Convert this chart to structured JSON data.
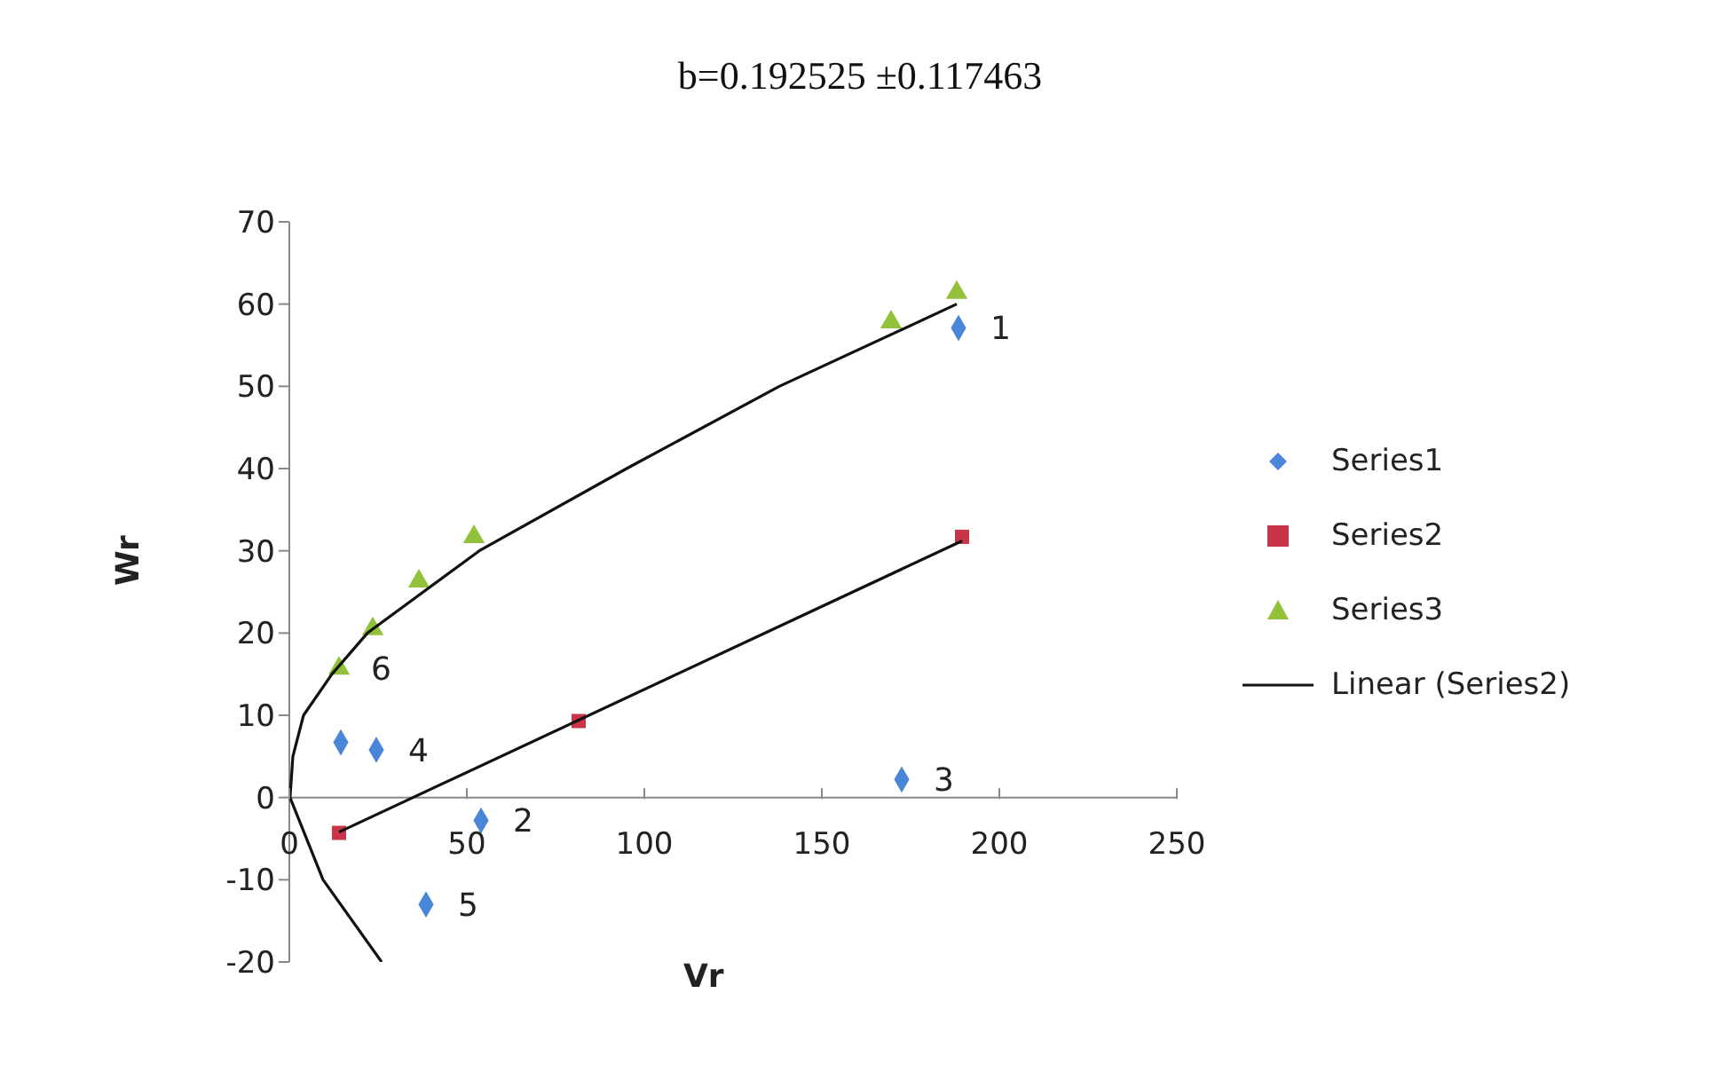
{
  "chart_data": {
    "type": "scatter",
    "title": "b=0.192525 ±0.117463",
    "xlabel": "Vr",
    "ylabel": "Wr",
    "xlim": [
      0,
      250
    ],
    "xticks": [
      0,
      50,
      100,
      150,
      200,
      250
    ],
    "ylim": [
      -20,
      70
    ],
    "yticks": [
      -20,
      -10,
      0,
      10,
      20,
      30,
      40,
      50,
      60,
      70
    ],
    "legend": "right",
    "series": [
      {
        "name": "Series1",
        "color": "#4a86d8",
        "marker": "diamond",
        "x": [
          188.5,
          54,
          172.5,
          24.5,
          38.5,
          14.5
        ],
        "values": [
          57.1,
          -2.8,
          2.2,
          5.8,
          -13,
          6.7
        ]
      },
      {
        "name": "Series2",
        "color": "#c8344a",
        "marker": "square",
        "x": [
          14,
          81.5,
          189.5
        ],
        "values": [
          -4.3,
          9.3,
          31.7
        ]
      },
      {
        "name": "Series3",
        "color": "#92c13a",
        "marker": "triangle",
        "x": [
          14,
          23.5,
          36.5,
          52,
          169.5,
          188
        ],
        "values": [
          15.7,
          20.5,
          26.3,
          31.7,
          57.8,
          61.4
        ]
      },
      {
        "name": "Linear (Series2)",
        "type": "line",
        "color": "#111111",
        "marker": "none",
        "x": [
          14,
          189.5
        ],
        "values": [
          -4.2,
          31.2
        ]
      },
      {
        "type": "line",
        "color": "#111111",
        "marker": "none",
        "x": [
          26,
          9.5,
          0.2,
          1,
          4,
          12,
          22,
          53.5,
          95,
          138,
          188
        ],
        "values": [
          -20,
          -10,
          0,
          5,
          10,
          15,
          20,
          30,
          40,
          50,
          60
        ]
      }
    ],
    "annotations": [
      {
        "text": "1",
        "x": 188.5,
        "y": 57.1
      },
      {
        "text": "2",
        "x": 54,
        "y": -2.8
      },
      {
        "text": "3",
        "x": 172.5,
        "y": 2.2
      },
      {
        "text": "4",
        "x": 24.5,
        "y": 5.8
      },
      {
        "text": "5",
        "x": 38.5,
        "y": -13
      },
      {
        "text": "6",
        "x": 14,
        "y": 15.7
      }
    ]
  }
}
